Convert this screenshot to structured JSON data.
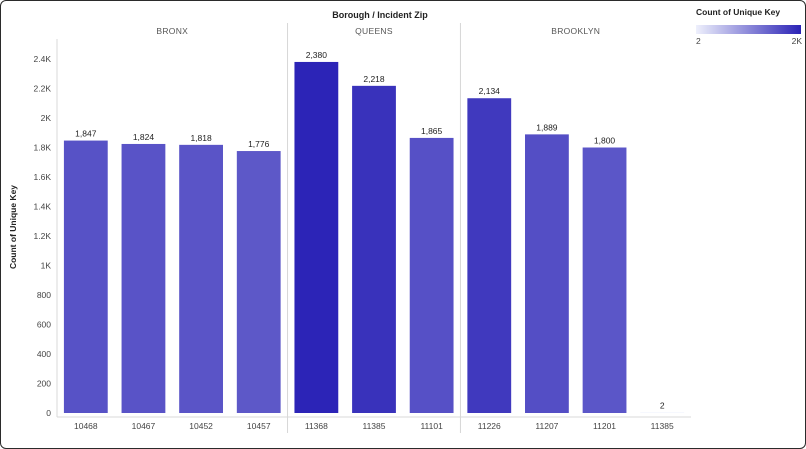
{
  "chart_data": {
    "type": "bar",
    "title": "Borough / Incident Zip",
    "ylabel": "Count of Unique Key",
    "xlabel": "",
    "ylim": [
      0,
      2400
    ],
    "yticks": [
      {
        "value": 0,
        "label": "0"
      },
      {
        "value": 200,
        "label": "200"
      },
      {
        "value": 400,
        "label": "400"
      },
      {
        "value": 600,
        "label": "600"
      },
      {
        "value": 800,
        "label": "800"
      },
      {
        "value": 1000,
        "label": "1K"
      },
      {
        "value": 1200,
        "label": "1.2K"
      },
      {
        "value": 1400,
        "label": "1.4K"
      },
      {
        "value": 1600,
        "label": "1.6K"
      },
      {
        "value": 1800,
        "label": "1.8K"
      },
      {
        "value": 2000,
        "label": "2K"
      },
      {
        "value": 2200,
        "label": "2.2K"
      },
      {
        "value": 2400,
        "label": "2.4K"
      }
    ],
    "groups": [
      {
        "name": "BRONX",
        "bars": [
          {
            "category": "10468",
            "value": 1847,
            "label": "1,847"
          },
          {
            "category": "10467",
            "value": 1824,
            "label": "1,824"
          },
          {
            "category": "10452",
            "value": 1818,
            "label": "1,818"
          },
          {
            "category": "10457",
            "value": 1776,
            "label": "1,776"
          }
        ]
      },
      {
        "name": "QUEENS",
        "bars": [
          {
            "category": "11368",
            "value": 2380,
            "label": "2,380"
          },
          {
            "category": "11385",
            "value": 2218,
            "label": "2,218"
          },
          {
            "category": "11101",
            "value": 1865,
            "label": "1,865"
          }
        ]
      },
      {
        "name": "BROOKLYN",
        "bars": [
          {
            "category": "11226",
            "value": 2134,
            "label": "2,134"
          },
          {
            "category": "11207",
            "value": 1889,
            "label": "1,889"
          },
          {
            "category": "11201",
            "value": 1800,
            "label": "1,800"
          },
          {
            "category": "11385",
            "value": 2,
            "label": "2"
          }
        ]
      }
    ],
    "legend": {
      "title": "Count of Unique Key",
      "min_label": "2",
      "max_label": "2K",
      "color_low": "#eef0fc",
      "color_high": "#2a22b6",
      "placement": "top-right"
    },
    "grid": false
  }
}
